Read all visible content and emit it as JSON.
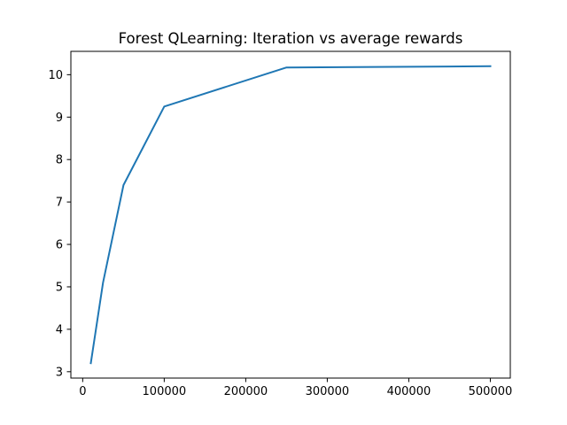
{
  "chart_data": {
    "type": "line",
    "title": "Forest QLearning: Iteration vs average rewards",
    "xlabel": "",
    "ylabel": "",
    "xlim": [
      -14500,
      524500
    ],
    "ylim": [
      2.85,
      10.55
    ],
    "xticks": [
      0,
      100000,
      200000,
      300000,
      400000,
      500000
    ],
    "yticks": [
      3,
      4,
      5,
      6,
      7,
      8,
      9,
      10
    ],
    "grid": false,
    "series": [
      {
        "color": "#1f77b4",
        "x": [
          10000,
          25000,
          50000,
          100000,
          250000,
          500000
        ],
        "y": [
          3.2,
          5.1,
          7.4,
          9.25,
          10.17,
          10.2
        ]
      }
    ]
  }
}
